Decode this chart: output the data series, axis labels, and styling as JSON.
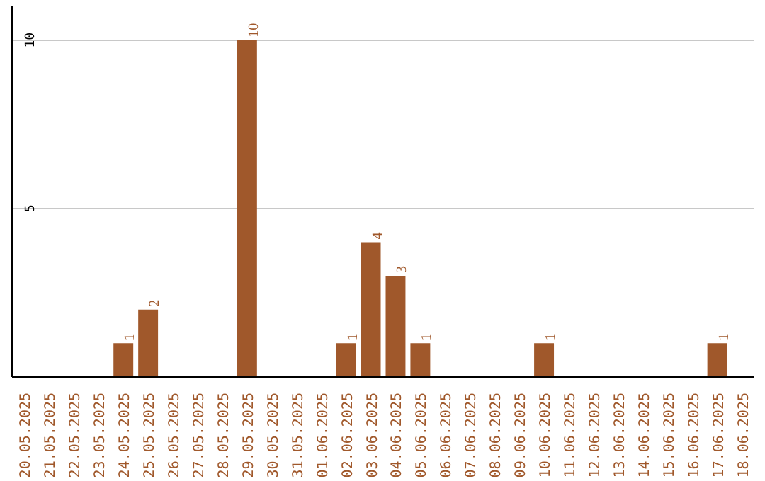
{
  "chart_data": {
    "type": "bar",
    "categories": [
      "20.05.2025",
      "21.05.2025",
      "22.05.2025",
      "23.05.2025",
      "24.05.2025",
      "25.05.2025",
      "26.05.2025",
      "27.05.2025",
      "28.05.2025",
      "29.05.2025",
      "30.05.2025",
      "31.05.2025",
      "01.06.2025",
      "02.06.2025",
      "03.06.2025",
      "04.06.2025",
      "05.06.2025",
      "06.06.2025",
      "07.06.2025",
      "08.06.2025",
      "09.06.2025",
      "10.06.2025",
      "11.06.2025",
      "12.06.2025",
      "13.06.2025",
      "14.06.2025",
      "15.06.2025",
      "16.06.2025",
      "17.06.2025",
      "18.06.2025"
    ],
    "values": [
      0,
      0,
      0,
      0,
      1,
      2,
      0,
      0,
      0,
      10,
      0,
      0,
      0,
      1,
      4,
      3,
      1,
      0,
      0,
      0,
      0,
      1,
      0,
      0,
      0,
      0,
      0,
      0,
      1,
      0
    ],
    "value_labels": [
      null,
      null,
      null,
      null,
      "1",
      "2",
      null,
      null,
      null,
      "10",
      null,
      null,
      null,
      "1",
      "4",
      "3",
      "1",
      null,
      null,
      null,
      null,
      "1",
      null,
      null,
      null,
      null,
      null,
      null,
      "1",
      null
    ],
    "color": "#a0582b",
    "ylim": [
      0,
      11
    ],
    "yticks": [
      5,
      10
    ],
    "grid": "y"
  }
}
